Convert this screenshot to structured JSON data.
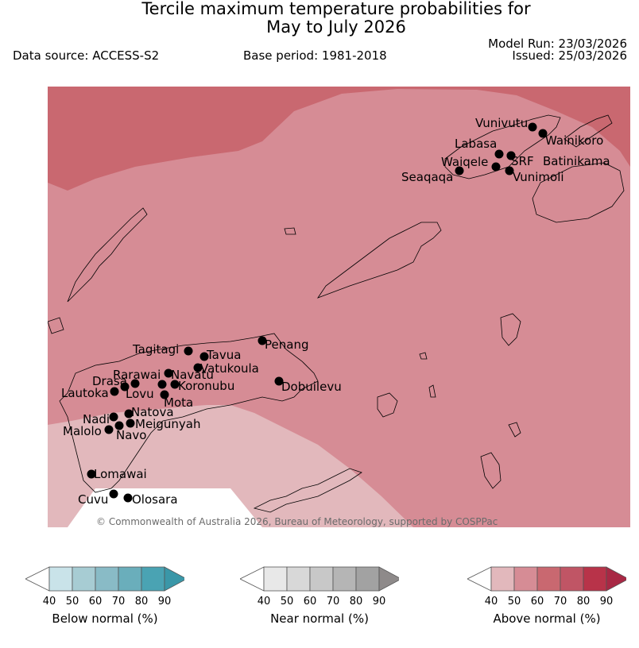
{
  "title": {
    "line1": "Tercile maximum temperature probabilities for",
    "line2": "May to July 2026"
  },
  "header": {
    "data_source": "Data source: ACCESS-S2",
    "base_period": "Base period: 1981-2018",
    "model_run": "Model Run: 23/03/2026",
    "issued": "Issued: 25/03/2026"
  },
  "map": {
    "copyright": "© Commonwealth of Australia 2026, Bureau of Meteorology, supported by COSPPac",
    "colors": {
      "above_40_50": "#e2b8bc",
      "above_50_60": "#d68c95",
      "above_60_70": "#c96870",
      "land_outline": "#000000"
    },
    "stations": [
      {
        "name": "Vunivutu"
      },
      {
        "name": "Wainikoro"
      },
      {
        "name": "Labasa"
      },
      {
        "name": "SRF"
      },
      {
        "name": "Batinikama"
      },
      {
        "name": "Waiqele"
      },
      {
        "name": "Seaqaqa"
      },
      {
        "name": "Vunimoli"
      },
      {
        "name": "Penang"
      },
      {
        "name": "Tagitagi"
      },
      {
        "name": "Tavua"
      },
      {
        "name": "Vatukoula"
      },
      {
        "name": "Rarawai"
      },
      {
        "name": "Navatu"
      },
      {
        "name": "Koronubu"
      },
      {
        "name": "Dobuilevu"
      },
      {
        "name": "Drasa"
      },
      {
        "name": "Lautoka"
      },
      {
        "name": "Lovu"
      },
      {
        "name": "Mota"
      },
      {
        "name": "Natova"
      },
      {
        "name": "Nadi"
      },
      {
        "name": "Meigunyah"
      },
      {
        "name": "Malolo"
      },
      {
        "name": "Navo"
      },
      {
        "name": "Lomawai"
      },
      {
        "name": "Cuvu"
      },
      {
        "name": "Olosara"
      }
    ]
  },
  "legend": {
    "ticks": [
      "40",
      "50",
      "60",
      "70",
      "80",
      "90"
    ],
    "below": {
      "label": "Below normal (%)",
      "colors": [
        "#c9e3e9",
        "#a7ccd3",
        "#89bbc6",
        "#6aaebb",
        "#4aa3b3",
        "#3a97a8"
      ]
    },
    "near": {
      "label": "Near normal (%)",
      "colors": [
        "#e8e8e8",
        "#d8d8d8",
        "#c8c8c8",
        "#b5b5b5",
        "#a2a2a2",
        "#8e8a8a"
      ]
    },
    "above": {
      "label": "Above normal (%)",
      "colors": [
        "#e2b8bc",
        "#d68c95",
        "#c96870",
        "#c05565",
        "#b83349",
        "#a82844"
      ]
    }
  }
}
